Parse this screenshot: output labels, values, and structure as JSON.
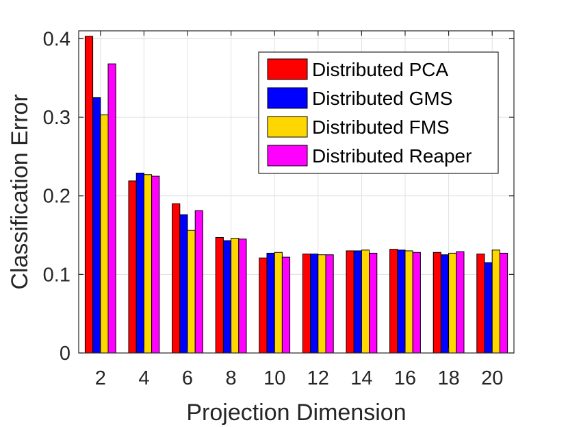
{
  "chart_data": {
    "type": "bar",
    "title": "",
    "xlabel": "Projection Dimension",
    "ylabel": "Classification Error",
    "categories": [
      "2",
      "4",
      "6",
      "8",
      "10",
      "12",
      "14",
      "16",
      "18",
      "20"
    ],
    "ylim": [
      0,
      0.41
    ],
    "yticks": [
      0,
      0.1,
      0.2,
      0.3,
      0.4
    ],
    "ytick_labels": [
      "0",
      "0.1",
      "0.2",
      "0.3",
      "0.4"
    ],
    "grid": true,
    "legend_position": "top-right",
    "series": [
      {
        "name": "Distributed PCA",
        "color": "#ff0000",
        "values": [
          0.403,
          0.219,
          0.19,
          0.147,
          0.121,
          0.126,
          0.13,
          0.132,
          0.128,
          0.126
        ]
      },
      {
        "name": "Distributed GMS",
        "color": "#0000ff",
        "values": [
          0.325,
          0.229,
          0.176,
          0.143,
          0.127,
          0.126,
          0.13,
          0.131,
          0.125,
          0.115
        ]
      },
      {
        "name": "Distributed FMS",
        "color": "#ffd700",
        "values": [
          0.303,
          0.227,
          0.156,
          0.146,
          0.128,
          0.125,
          0.131,
          0.13,
          0.127,
          0.131
        ]
      },
      {
        "name": "Distributed Reaper",
        "color": "#ff00ff",
        "values": [
          0.368,
          0.225,
          0.181,
          0.145,
          0.122,
          0.125,
          0.127,
          0.128,
          0.129,
          0.127
        ]
      }
    ]
  }
}
